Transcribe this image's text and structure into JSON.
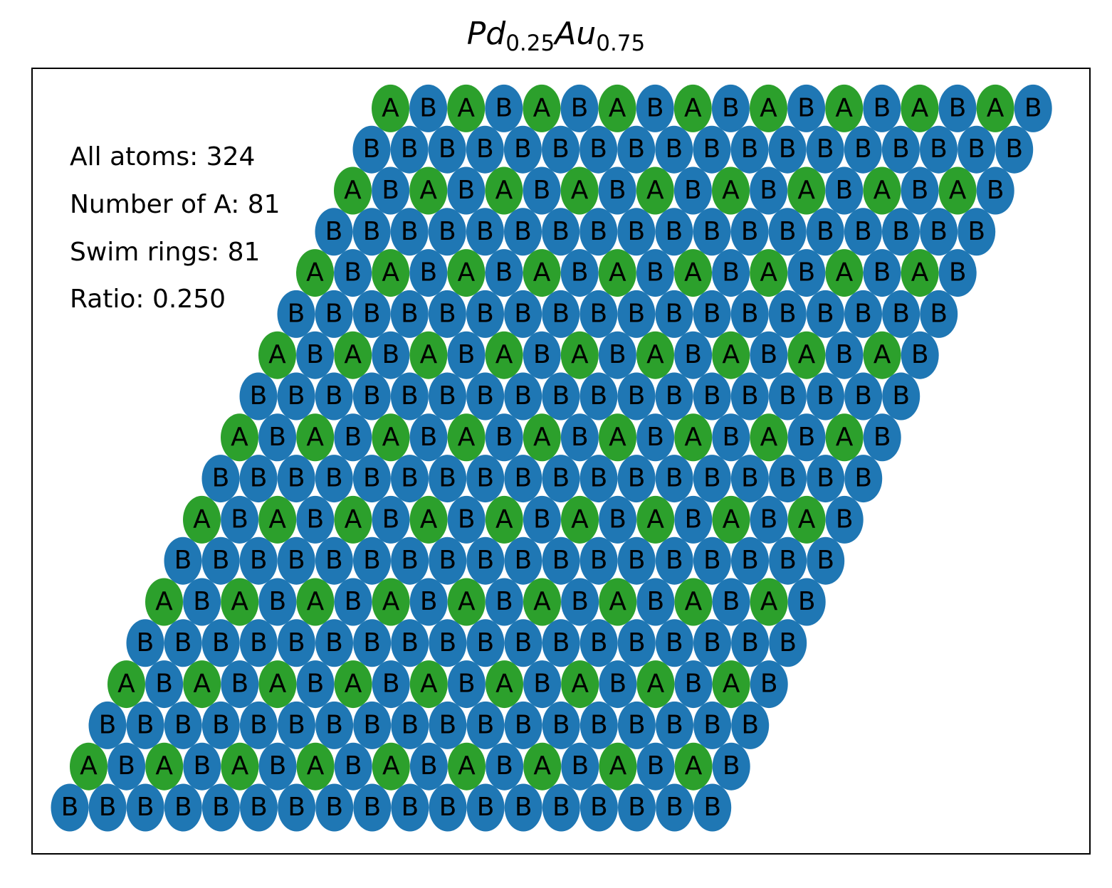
{
  "chart_data": {
    "type": "scatter",
    "title": {
      "element_1": "Pd",
      "fraction_1": "0.25",
      "element_2": "Au",
      "fraction_2": "0.75"
    },
    "lattice": {
      "rows": 18,
      "columns": 18,
      "row_order": "top-to-bottom",
      "rows_pattern": [
        "ABABABABABABABABAB",
        "BBBBBBBBBBBBBBBBBB",
        "ABABABABABABABABAB",
        "BBBBBBBBBBBBBBBBBB",
        "ABABABABABABABABAB",
        "BBBBBBBBBBBBBBBBBB",
        "ABABABABABABABABAB",
        "BBBBBBBBBBBBBBBBBB",
        "ABABABABABABABABAB",
        "BBBBBBBBBBBBBBBBBB",
        "ABABABABABABABABAB",
        "BBBBBBBBBBBBBBBBBB",
        "ABABABABABABABABAB",
        "BBBBBBBBBBBBBBBBBB",
        "ABABABABABABABABAB",
        "BBBBBBBBBBBBBBBBBB",
        "ABABABABABABABABAB",
        "BBBBBBBBBBBBBBBBBB"
      ]
    },
    "species_colors": {
      "A": "#2ca02c",
      "B": "#1f77b4"
    },
    "grid": false,
    "axes_ticks": false
  },
  "stats": {
    "all_atoms": "All atoms: 324",
    "number_of_a": "Number of A: 81",
    "swim_rings": "Swim rings: 81",
    "ratio": "Ratio: 0.250"
  }
}
